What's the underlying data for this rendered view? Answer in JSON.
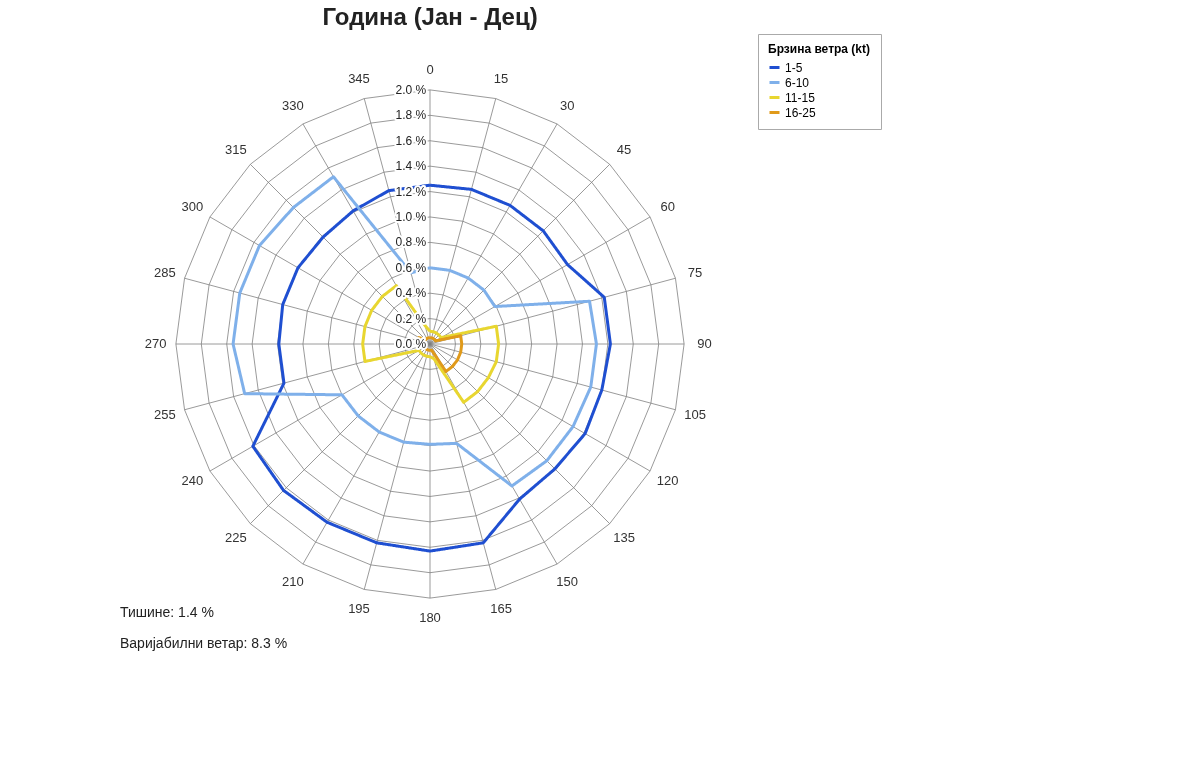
{
  "chart_data": {
    "type": "radar",
    "title": "Година (Јан - Дец)",
    "categories": [
      "0",
      "15",
      "30",
      "45",
      "60",
      "75",
      "90",
      "105",
      "120",
      "135",
      "150",
      "165",
      "180",
      "195",
      "210",
      "225",
      "240",
      "255",
      "270",
      "285",
      "300",
      "315",
      "330",
      "345"
    ],
    "series": [
      {
        "name": "1-5",
        "color": "#1f4fd1",
        "values": [
          1.25,
          1.26,
          1.26,
          1.26,
          1.25,
          1.42,
          1.42,
          1.4,
          1.41,
          1.39,
          1.41,
          1.62,
          1.63,
          1.62,
          1.62,
          1.63,
          1.61,
          1.19,
          1.19,
          1.2,
          1.2,
          1.19,
          1.21,
          1.25
        ]
      },
      {
        "name": "6-10",
        "color": "#7fb0ea",
        "values": [
          0.6,
          0.6,
          0.6,
          0.6,
          0.59,
          1.3,
          1.31,
          1.31,
          1.3,
          1.3,
          1.29,
          0.81,
          0.79,
          0.8,
          0.8,
          0.8,
          0.8,
          1.51,
          1.55,
          1.55,
          1.55,
          1.52,
          1.52,
          0.58
        ]
      },
      {
        "name": "11-15",
        "color": "#e8d630",
        "values": [
          0.1,
          0.1,
          0.1,
          0.1,
          0.1,
          0.54,
          0.54,
          0.54,
          0.53,
          0.53,
          0.53,
          0.12,
          0.1,
          0.1,
          0.1,
          0.1,
          0.1,
          0.53,
          0.53,
          0.53,
          0.53,
          0.53,
          0.53,
          0.15
        ]
      },
      {
        "name": "16-25",
        "color": "#e09a1a",
        "values": [
          0.05,
          0.05,
          0.05,
          0.05,
          0.05,
          0.25,
          0.25,
          0.25,
          0.25,
          0.25,
          0.25,
          0.05,
          0.05,
          0.05,
          0.05,
          0.05,
          0.05,
          0.05,
          0.1,
          0.1,
          0.1,
          0.05,
          0.05,
          0.05
        ]
      }
    ],
    "ylim": [
      0,
      2
    ],
    "yticks": [
      {
        "value": 0,
        "label": "0.0 %"
      },
      {
        "value": 0.2,
        "label": "0.2 %"
      },
      {
        "value": 0.4,
        "label": "0.4 %"
      },
      {
        "value": 0.6,
        "label": "0.6 %"
      },
      {
        "value": 0.8,
        "label": "0.8 %"
      },
      {
        "value": 1.0,
        "label": "1.0 %"
      },
      {
        "value": 1.2,
        "label": "1.2 %"
      },
      {
        "value": 1.4,
        "label": "1.4 %"
      },
      {
        "value": 1.6,
        "label": "1.6 %"
      },
      {
        "value": 1.8,
        "label": "1.8 %"
      },
      {
        "value": 2.0,
        "label": "2.0 %"
      }
    ],
    "grid": true,
    "legend": "right",
    "legend_title": "Брзина ветра (kt)",
    "line_style": "solid",
    "marker": "none",
    "annotations": [
      "Тишине:  1.4 %",
      "Варијабилни ветар: 8.3 %"
    ]
  }
}
